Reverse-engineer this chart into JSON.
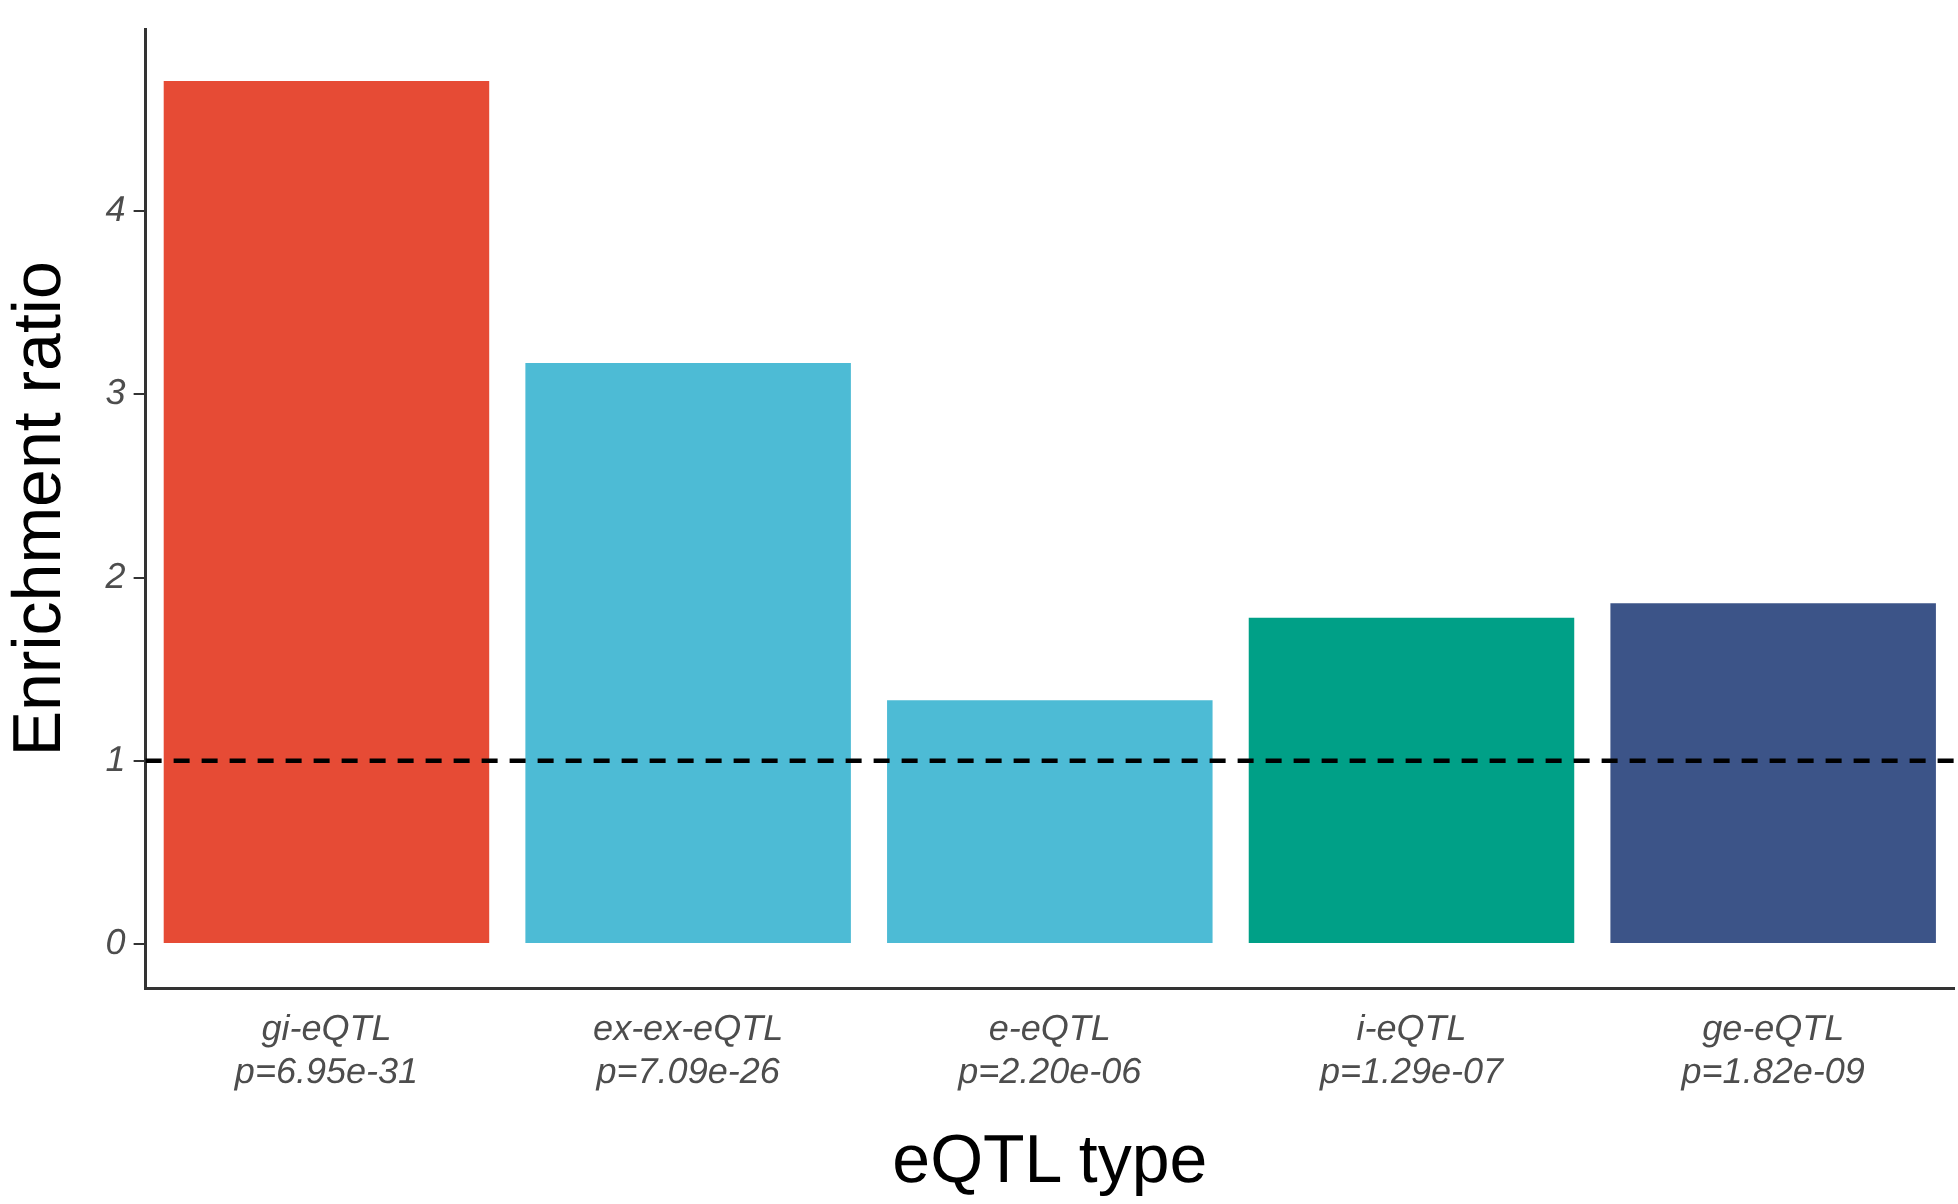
{
  "chart_data": {
    "type": "bar",
    "xlabel": "eQTL type",
    "ylabel": "Enrichment ratio",
    "categories": [
      "gi-eQTL\np=6.95e-31",
      "ex-ex-eQTL\np=7.09e-26",
      "e-eQTL\np=2.20e-06",
      "i-eQTL\np=1.29e-07",
      "ge-eQTL\np=1.82e-09"
    ],
    "values": [
      4.71,
      3.17,
      1.33,
      1.78,
      1.86
    ],
    "colors": [
      "#e64b35",
      "#4dbbd5",
      "#4dbbd5",
      "#00a087",
      "#3c5488"
    ],
    "ylim": [
      -0.24,
      4.99
    ],
    "yticks": [
      0,
      1,
      2,
      3,
      4
    ],
    "grid": false,
    "legend": false,
    "ref_lines": [
      {
        "axis": "y",
        "value": 1,
        "color": "#000000",
        "line_style": "dashed"
      }
    ]
  }
}
